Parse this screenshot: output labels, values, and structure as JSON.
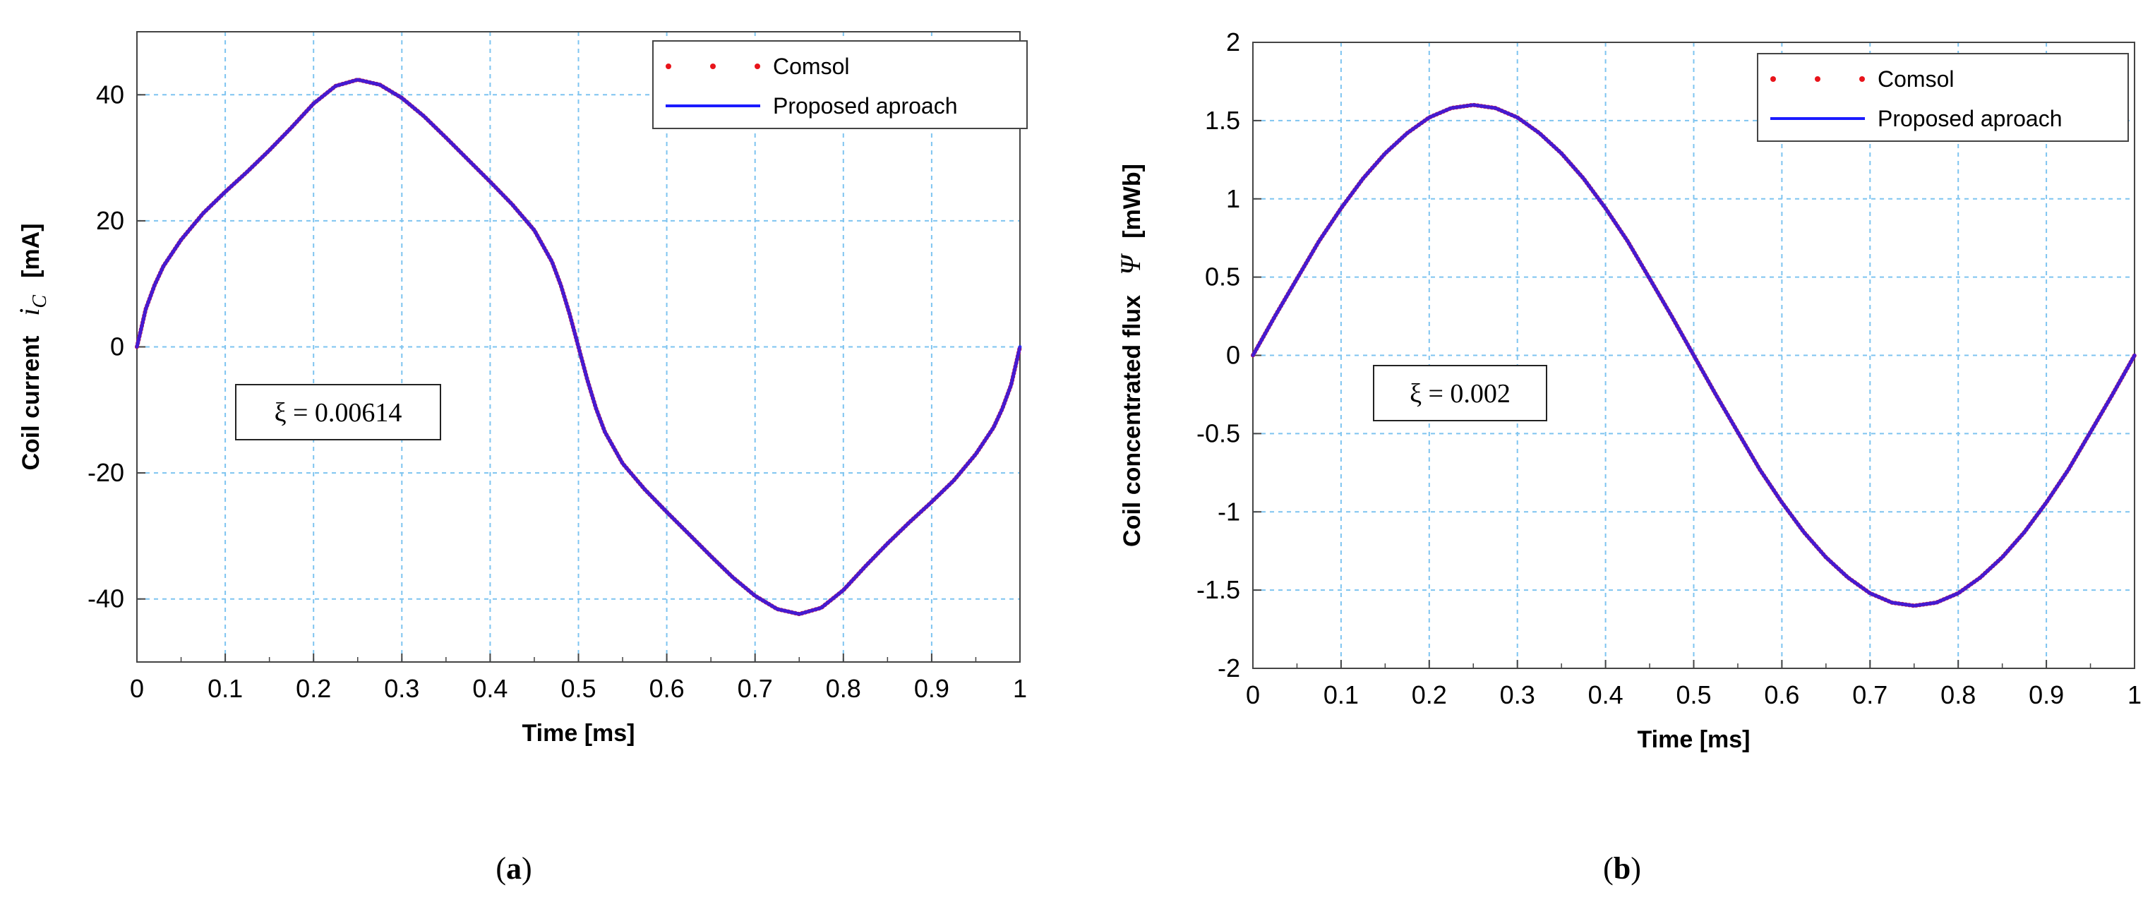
{
  "chart_data": [
    {
      "type": "line",
      "panel": "a",
      "caption_open": "(",
      "caption_letter": "a",
      "caption_close": ")",
      "xlabel": "Time [ms]",
      "ylabel": "Coil current",
      "ylabel_symbol": "i",
      "ylabel_subscript": "C",
      "ylabel_unit": "[mA]",
      "xlim": [
        0,
        1
      ],
      "ylim": [
        -50,
        50
      ],
      "xticks": [
        0,
        0.1,
        0.2,
        0.3,
        0.4,
        0.5,
        0.6,
        0.7,
        0.8,
        0.9,
        1
      ],
      "xtick_labels": [
        "0",
        "0.1",
        "0.2",
        "0.3",
        "0.4",
        "0.5",
        "0.6",
        "0.7",
        "0.8",
        "0.9",
        "1"
      ],
      "yticks": [
        40,
        20,
        0,
        -20,
        -40
      ],
      "ytick_labels": [
        "40",
        "20",
        "0",
        "-20",
        "-40"
      ],
      "grid": true,
      "legend_position": "top-right",
      "annotation": "ξ = 0.00614",
      "x": [
        0,
        0.01,
        0.02,
        0.03,
        0.05,
        0.075,
        0.1,
        0.125,
        0.15,
        0.175,
        0.2,
        0.225,
        0.25,
        0.275,
        0.3,
        0.325,
        0.35,
        0.375,
        0.4,
        0.425,
        0.45,
        0.47,
        0.48,
        0.49,
        0.5,
        0.51,
        0.52,
        0.53,
        0.55,
        0.575,
        0.6,
        0.625,
        0.65,
        0.675,
        0.7,
        0.725,
        0.75,
        0.775,
        0.8,
        0.825,
        0.85,
        0.875,
        0.9,
        0.925,
        0.95,
        0.97,
        0.98,
        0.99,
        1
      ],
      "series": [
        {
          "name": "Comsol",
          "style": "dotted",
          "color": "#e8141b",
          "values": [
            0,
            6,
            9.8,
            12.8,
            17,
            21.2,
            24.6,
            27.8,
            31.2,
            34.8,
            38.6,
            41.4,
            42.4,
            41.6,
            39.5,
            36.6,
            33.2,
            29.7,
            26.2,
            22.6,
            18.5,
            13.5,
            9.8,
            5.2,
            0,
            -5.2,
            -9.8,
            -13.5,
            -18.5,
            -22.6,
            -26.2,
            -29.7,
            -33.2,
            -36.6,
            -39.5,
            -41.6,
            -42.4,
            -41.4,
            -38.6,
            -34.8,
            -31.2,
            -27.8,
            -24.6,
            -21.2,
            -17,
            -12.8,
            -9.8,
            -6,
            0
          ]
        },
        {
          "name": "Proposed aproach",
          "style": "solid",
          "color": "#1b1bff",
          "values": [
            0,
            6,
            9.8,
            12.8,
            17,
            21.2,
            24.6,
            27.8,
            31.2,
            34.8,
            38.6,
            41.4,
            42.4,
            41.6,
            39.5,
            36.6,
            33.2,
            29.7,
            26.2,
            22.6,
            18.5,
            13.5,
            9.8,
            5.2,
            0,
            -5.2,
            -9.8,
            -13.5,
            -18.5,
            -22.6,
            -26.2,
            -29.7,
            -33.2,
            -36.6,
            -39.5,
            -41.6,
            -42.4,
            -41.4,
            -38.6,
            -34.8,
            -31.2,
            -27.8,
            -24.6,
            -21.2,
            -17,
            -12.8,
            -9.8,
            -6,
            0
          ]
        }
      ]
    },
    {
      "type": "line",
      "panel": "b",
      "caption_open": "(",
      "caption_letter": "b",
      "caption_close": ")",
      "xlabel": "Time [ms]",
      "ylabel": "Coil concentrated flux",
      "ylabel_symbol": "Ψ",
      "ylabel_subscript": "",
      "ylabel_unit": "[mWb]",
      "xlim": [
        0,
        1
      ],
      "ylim": [
        -2,
        2
      ],
      "xticks": [
        0,
        0.1,
        0.2,
        0.3,
        0.4,
        0.5,
        0.6,
        0.7,
        0.8,
        0.9,
        1
      ],
      "xtick_labels": [
        "0",
        "0.1",
        "0.2",
        "0.3",
        "0.4",
        "0.5",
        "0.6",
        "0.7",
        "0.8",
        "0.9",
        "1"
      ],
      "yticks": [
        2,
        1.5,
        1,
        0.5,
        0,
        -0.5,
        -1,
        -1.5,
        -2
      ],
      "ytick_labels": [
        "2",
        "1.5",
        "1",
        "0.5",
        "0",
        "-0.5",
        "-1",
        "-1.5",
        "-2"
      ],
      "grid": true,
      "legend_position": "top-right",
      "annotation": "ξ = 0.002",
      "x": [
        0,
        0.025,
        0.05,
        0.075,
        0.1,
        0.125,
        0.15,
        0.175,
        0.2,
        0.225,
        0.25,
        0.275,
        0.3,
        0.325,
        0.35,
        0.375,
        0.4,
        0.425,
        0.45,
        0.475,
        0.5,
        0.525,
        0.55,
        0.575,
        0.6,
        0.625,
        0.65,
        0.675,
        0.7,
        0.725,
        0.75,
        0.775,
        0.8,
        0.825,
        0.85,
        0.875,
        0.9,
        0.925,
        0.95,
        0.975,
        1
      ],
      "series": [
        {
          "name": "Comsol",
          "style": "dotted",
          "color": "#e8141b",
          "values": [
            0,
            0.25,
            0.49,
            0.73,
            0.94,
            1.13,
            1.29,
            1.42,
            1.52,
            1.58,
            1.6,
            1.58,
            1.52,
            1.42,
            1.29,
            1.13,
            0.94,
            0.73,
            0.49,
            0.25,
            0,
            -0.25,
            -0.49,
            -0.73,
            -0.94,
            -1.13,
            -1.29,
            -1.42,
            -1.52,
            -1.58,
            -1.6,
            -1.58,
            -1.52,
            -1.42,
            -1.29,
            -1.13,
            -0.94,
            -0.73,
            -0.49,
            -0.25,
            0
          ]
        },
        {
          "name": "Proposed aproach",
          "style": "solid",
          "color": "#1b1bff",
          "values": [
            0,
            0.25,
            0.49,
            0.73,
            0.94,
            1.13,
            1.29,
            1.42,
            1.52,
            1.58,
            1.6,
            1.58,
            1.52,
            1.42,
            1.29,
            1.13,
            0.94,
            0.73,
            0.49,
            0.25,
            0,
            -0.25,
            -0.49,
            -0.73,
            -0.94,
            -1.13,
            -1.29,
            -1.42,
            -1.52,
            -1.58,
            -1.6,
            -1.58,
            -1.52,
            -1.42,
            -1.29,
            -1.13,
            -0.94,
            -0.73,
            -0.49,
            -0.25,
            0
          ]
        }
      ]
    }
  ]
}
